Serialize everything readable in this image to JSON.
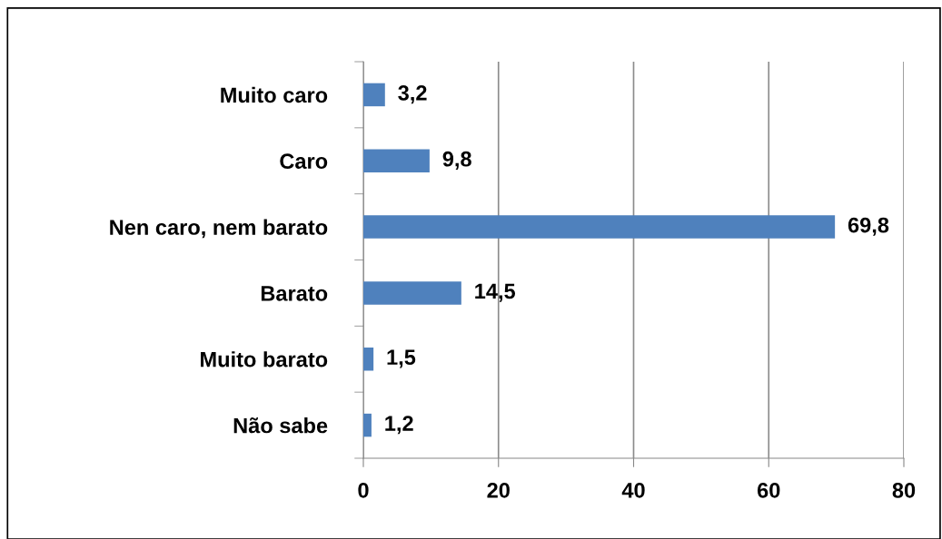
{
  "chart_data": {
    "type": "bar",
    "orientation": "horizontal",
    "categories": [
      "Muito caro",
      "Caro",
      "Nen caro, nem barato",
      "Barato",
      "Muito barato",
      "Não sabe"
    ],
    "values": [
      3.2,
      9.8,
      69.8,
      14.5,
      1.5,
      1.2
    ],
    "value_labels": [
      "3,2",
      "9,8",
      "69,8",
      "14,5",
      "1,5",
      "1,2"
    ],
    "color": "#4f81bd",
    "xlim": [
      0,
      80
    ],
    "xticks": [
      0,
      20,
      40,
      60,
      80
    ],
    "grid": "x",
    "legend": false
  }
}
